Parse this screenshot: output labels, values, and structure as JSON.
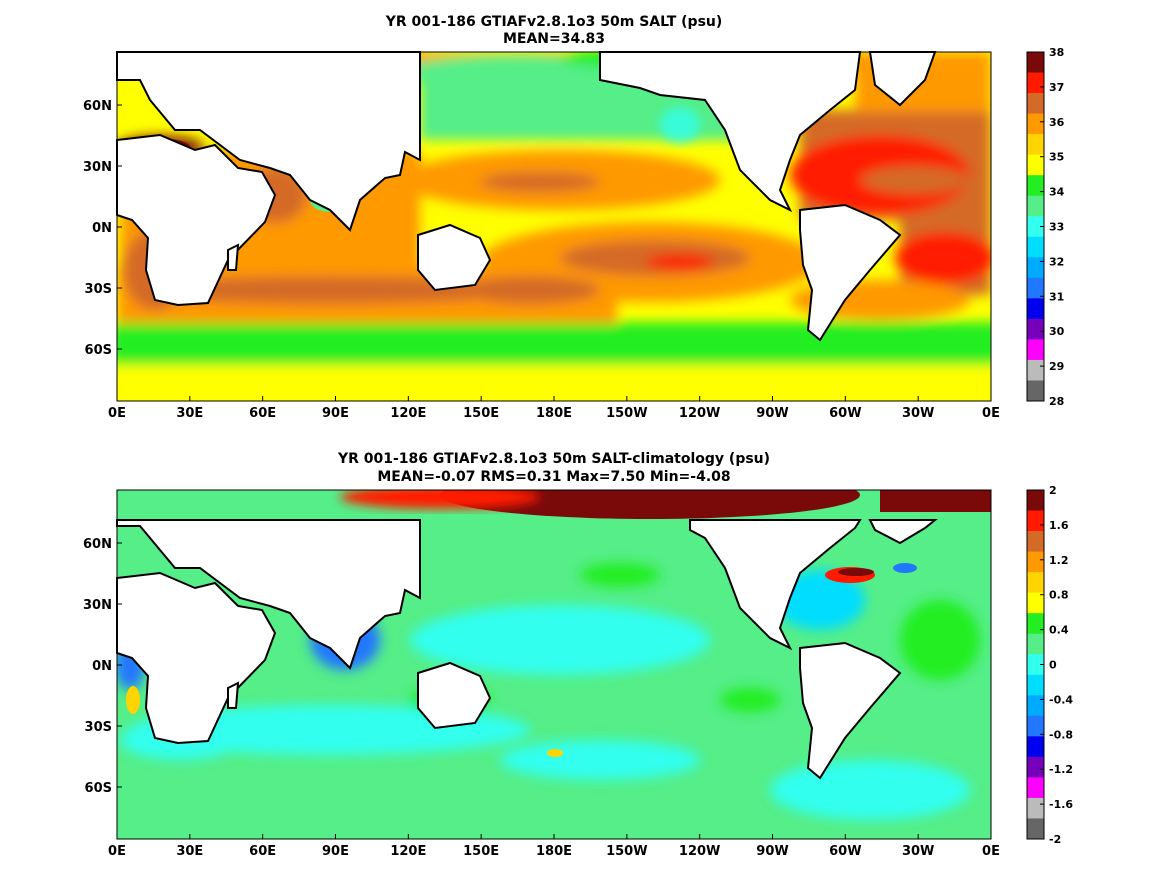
{
  "chart_data": [
    {
      "type": "heatmap",
      "title": "YR 001-186 GTIAFv2.8.1o3 50m SALT (psu)",
      "subtitle": "MEAN=34.83",
      "x_ticks": [
        "0E",
        "30E",
        "60E",
        "90E",
        "120E",
        "150E",
        "180E",
        "150W",
        "120W",
        "90W",
        "60W",
        "30W",
        "0E"
      ],
      "y_ticks": [
        "60N",
        "30N",
        "0N",
        "30S",
        "60S"
      ],
      "colorbar_ticks": [
        "38",
        "37",
        "36",
        "35",
        "34",
        "33",
        "32",
        "31",
        "30",
        "29",
        "28"
      ],
      "colorbar_colors": [
        "#7a0a0a",
        "#ff1a00",
        "#d46a28",
        "#ff9900",
        "#ffd400",
        "#ffff00",
        "#22ee22",
        "#55ee88",
        "#33ffee",
        "#00ddff",
        "#00aaff",
        "#2277ff",
        "#0000ee",
        "#7700bb",
        "#ff00ff",
        "#bbbbbb",
        "#666666"
      ],
      "range": [
        28,
        38
      ],
      "mean": 34.83
    },
    {
      "type": "heatmap",
      "title": "YR 001-186 GTIAFv2.8.1o3 50m SALT-climatology (psu)",
      "subtitle": "MEAN=-0.07   RMS=0.31   Max=7.50   Min=-4.08",
      "x_ticks": [
        "0E",
        "30E",
        "60E",
        "90E",
        "120E",
        "150E",
        "180E",
        "150W",
        "120W",
        "90W",
        "60W",
        "30W",
        "0E"
      ],
      "y_ticks": [
        "60N",
        "30N",
        "0N",
        "30S",
        "60S"
      ],
      "colorbar_ticks": [
        "2",
        "1.6",
        "1.2",
        "0.8",
        "0.4",
        "0",
        "-0.4",
        "-0.8",
        "-1.2",
        "-1.6",
        "-2"
      ],
      "colorbar_colors": [
        "#7a0a0a",
        "#ff1a00",
        "#d46a28",
        "#ff9900",
        "#ffd400",
        "#ffff00",
        "#22ee22",
        "#55ee88",
        "#33ffee",
        "#00ddff",
        "#00aaff",
        "#2277ff",
        "#0000ee",
        "#7700bb",
        "#ff00ff",
        "#bbbbbb",
        "#666666"
      ],
      "range": [
        -2,
        2
      ],
      "mean": -0.07,
      "rms": 0.31,
      "max": 7.5,
      "min": -4.08
    }
  ]
}
